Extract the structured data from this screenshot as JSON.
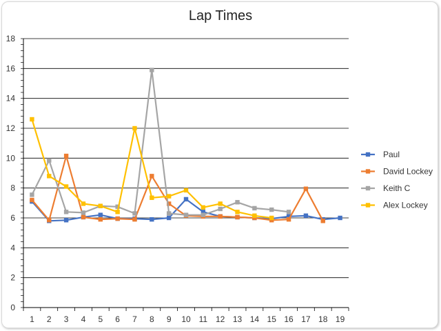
{
  "chart_data": {
    "type": "line",
    "title": "Lap Times",
    "xlabel": "",
    "ylabel": "",
    "x": [
      1,
      2,
      3,
      4,
      5,
      6,
      7,
      8,
      9,
      10,
      11,
      12,
      13,
      14,
      15,
      16,
      17,
      18,
      19
    ],
    "ylim": [
      0,
      18
    ],
    "yticks": [
      0,
      2,
      4,
      6,
      8,
      10,
      12,
      14,
      16,
      18
    ],
    "grid": true,
    "legend_position": "right",
    "series": [
      {
        "name": "Paul",
        "color": "#4472c4",
        "values": [
          7.1,
          5.8,
          5.85,
          6.05,
          6.2,
          5.95,
          5.95,
          5.9,
          6.0,
          7.25,
          6.4,
          6.1,
          6.05,
          6.0,
          5.95,
          6.1,
          6.15,
          5.9,
          6.0
        ]
      },
      {
        "name": "David Lockey",
        "color": "#ed7d31",
        "values": [
          7.2,
          5.85,
          10.15,
          6.05,
          5.9,
          5.95,
          5.9,
          8.8,
          6.95,
          6.15,
          6.1,
          6.1,
          6.05,
          6.0,
          5.85,
          5.9,
          7.95,
          5.8,
          null
        ]
      },
      {
        "name": "Keith C",
        "color": "#a5a5a5",
        "values": [
          7.55,
          9.85,
          6.4,
          6.35,
          6.8,
          6.75,
          6.3,
          15.9,
          6.3,
          6.2,
          6.2,
          6.6,
          7.05,
          6.65,
          6.55,
          6.4,
          null,
          null,
          null
        ]
      },
      {
        "name": "Alex Lockey",
        "color": "#ffc000",
        "values": [
          12.6,
          8.8,
          8.1,
          6.95,
          6.8,
          6.4,
          12.0,
          7.35,
          7.45,
          7.85,
          6.7,
          6.95,
          6.4,
          6.15,
          6.0,
          null,
          null,
          null,
          null
        ]
      }
    ]
  }
}
